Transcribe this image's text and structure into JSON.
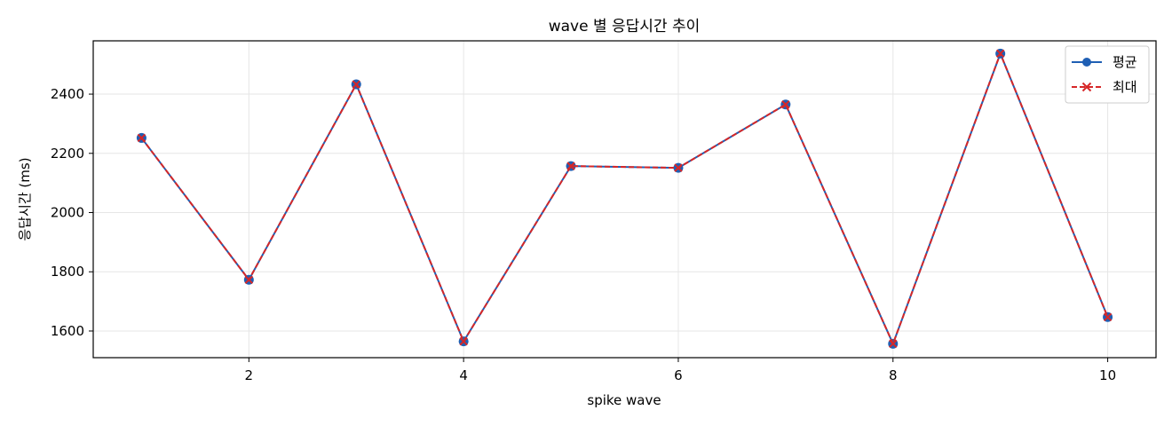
{
  "chart_data": {
    "type": "line",
    "title": "wave 별 응답시간 추이",
    "xlabel": "spike wave",
    "ylabel": "응답시간 (ms)",
    "x": [
      1,
      2,
      3,
      4,
      5,
      6,
      7,
      8,
      9,
      10
    ],
    "xlim": [
      0.55,
      10.45
    ],
    "ylim": [
      1510,
      2580
    ],
    "xticks": [
      2,
      4,
      6,
      8,
      10
    ],
    "yticks": [
      1600,
      1800,
      2000,
      2200,
      2400
    ],
    "grid": true,
    "legend_position": "top-right",
    "series": [
      {
        "name": "평균",
        "values": [
          2252,
          1773,
          2433,
          1565,
          2157,
          2151,
          2365,
          1557,
          2537,
          1647
        ],
        "color": "#1f5fb4",
        "line_style": "solid",
        "marker": "circle"
      },
      {
        "name": "최대",
        "values": [
          2252,
          1773,
          2433,
          1565,
          2157,
          2151,
          2365,
          1557,
          2537,
          1647
        ],
        "color": "#d62728",
        "line_style": "dashed",
        "marker": "x"
      }
    ]
  }
}
